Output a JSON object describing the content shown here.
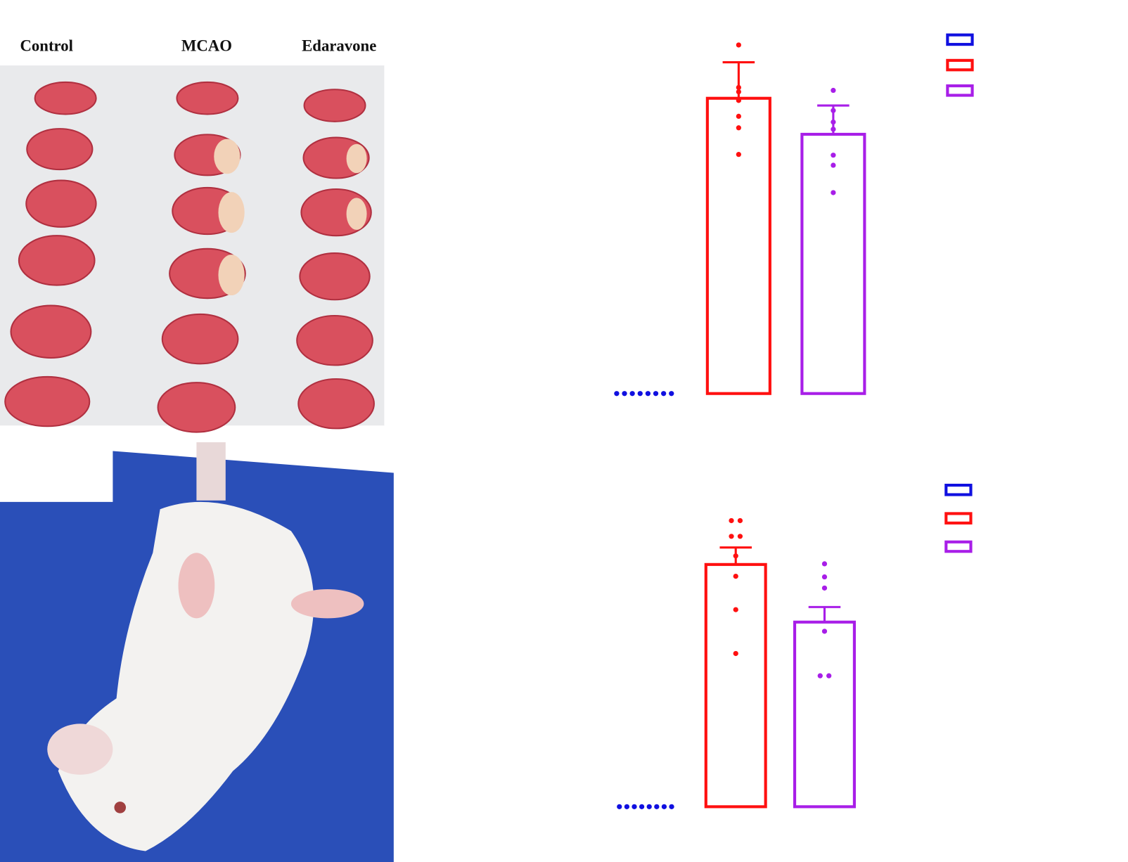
{
  "figure": {
    "panel_labels": [
      "Control",
      "MCAO",
      "Edaravone"
    ]
  },
  "chart_data": [
    {
      "type": "bar",
      "categories": [
        null,
        null,
        null
      ],
      "colors": [
        "#1010e0",
        "#ff1010",
        "#a81ee8"
      ],
      "values": [
        0,
        41,
        36
      ],
      "errors": [
        null,
        5,
        4
      ],
      "points": [
        [
          0,
          0,
          0,
          0,
          0,
          0,
          0,
          0
        ],
        [
          48.4,
          42.5,
          41.9,
          40.7,
          38.5,
          36.9,
          33.2
        ],
        [
          42.1,
          39.3,
          37.7,
          36.7,
          33.1,
          31.7,
          27.9
        ]
      ],
      "ylim": [
        0,
        50
      ]
    },
    {
      "type": "bar",
      "categories": [
        null,
        null,
        null
      ],
      "colors": [
        "#1010e0",
        "#ff1010",
        "#a81ee8"
      ],
      "values": [
        0,
        37,
        28.2
      ],
      "errors": [
        null,
        2.6,
        2.3
      ],
      "points": [
        [
          0,
          0,
          0,
          0,
          0,
          0,
          0,
          0
        ],
        [
          43.7,
          43.7,
          41.3,
          41.3,
          38.3,
          35.2,
          30.1,
          23.4
        ],
        [
          37.1,
          35.1,
          33.4,
          26.8,
          20,
          20
        ]
      ],
      "ylim": [
        0,
        50
      ]
    }
  ]
}
